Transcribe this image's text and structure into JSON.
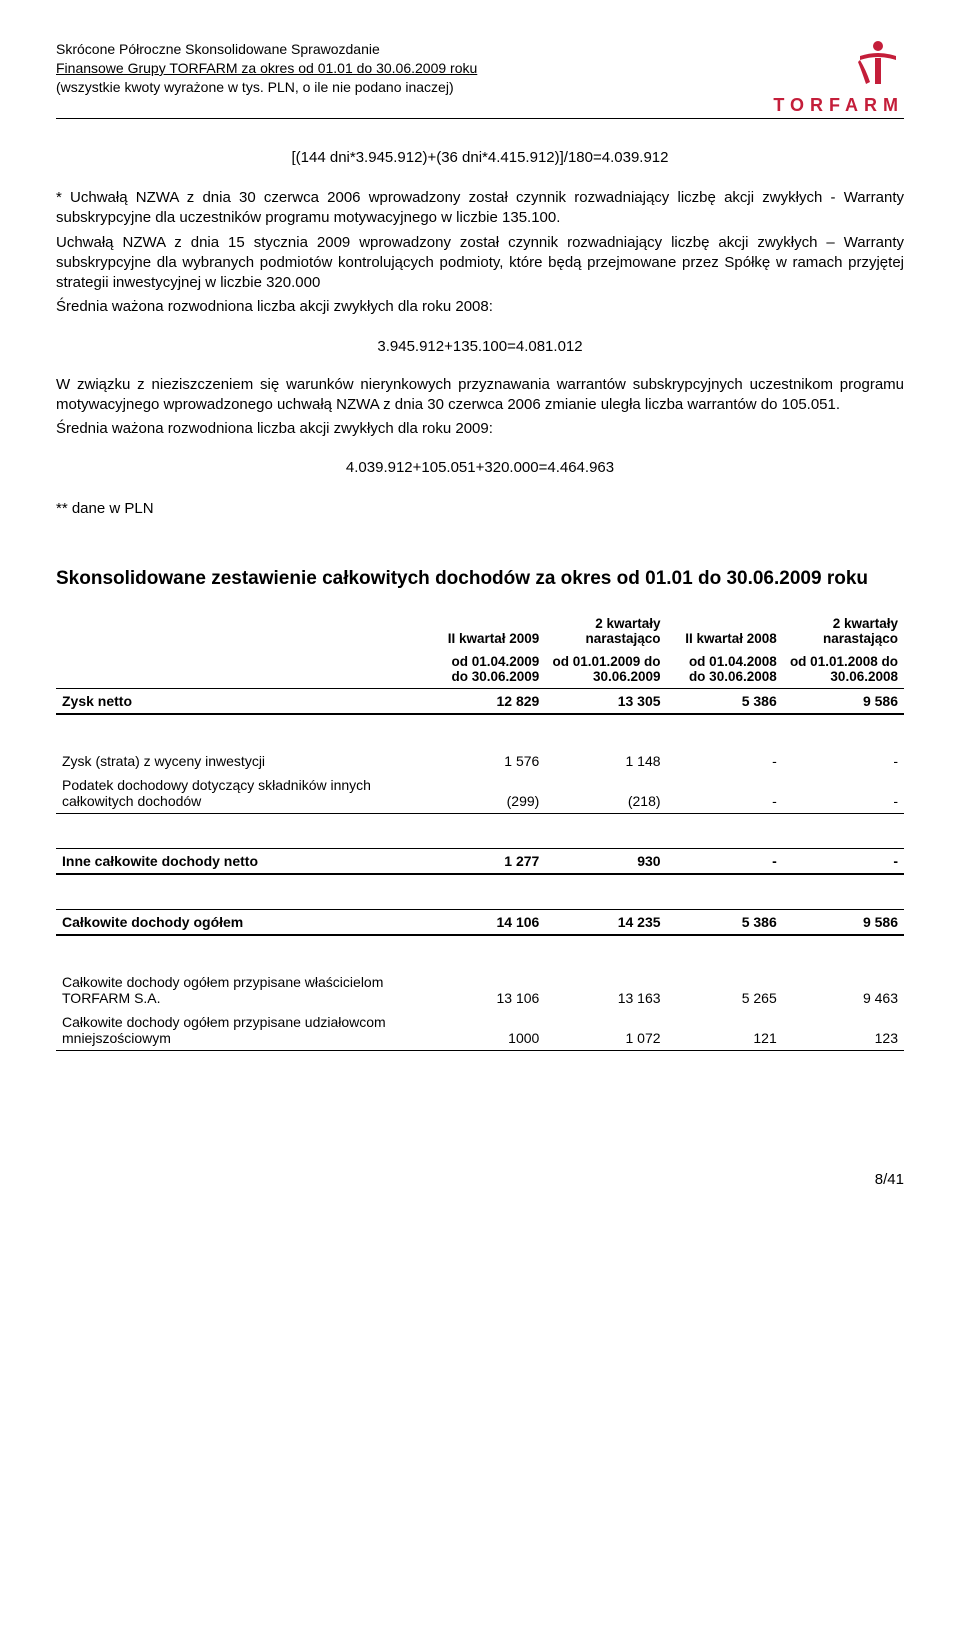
{
  "header": {
    "line1": "Skrócone Półroczne Skonsolidowane Sprawozdanie",
    "line2": "Finansowe Grupy TORFARM za okres od 01.01 do 30.06.2009 roku",
    "line3": "(wszystkie kwoty wyrażone w tys. PLN, o ile nie podano inaczej)",
    "logo_text": "TORFARM",
    "logo_color": "#c41e3a"
  },
  "formula1": "[(144 dni*3.945.912)+(36 dni*4.415.912)]/180=4.039.912",
  "para1": "* Uchwałą NZWA z dnia 30 czerwca 2006 wprowadzony został czynnik rozwadniający liczbę akcji zwykłych - Warranty subskrypcyjne dla uczestników programu motywacyjnego w liczbie 135.100.",
  "para2": "Uchwałą NZWA z dnia 15 stycznia 2009 wprowadzony został czynnik rozwadniający liczbę akcji zwykłych – Warranty subskrypcyjne dla wybranych podmiotów kontrolujących podmioty, które będą przejmowane przez Spółkę w ramach przyjętej strategii inwestycyjnej w liczbie 320.000",
  "para3": "Średnia ważona rozwodniona liczba akcji zwykłych dla roku 2008:",
  "formula2": "3.945.912+135.100=4.081.012",
  "para4": "W związku z nieziszczeniem się warunków nierynkowych przyznawania warrantów subskrypcyjnych uczestnikom programu motywacyjnego wprowadzonego uchwałą NZWA z dnia 30 czerwca 2006 zmianie uległa liczba warrantów do 105.051.",
  "para5": "Średnia ważona rozwodniona liczba akcji zwykłych dla roku 2009:",
  "formula3": "4.039.912+105.051+320.000=4.464.963",
  "note": "** dane w PLN",
  "section_title": "Skonsolidowane zestawienie całkowitych dochodów za okres od 01.01 do 30.06.2009 roku",
  "table": {
    "col_headers": {
      "c1a": "II kwartał 2009",
      "c1b": "od 01.04.2009 do 30.06.2009",
      "c2a": "2 kwartały narastająco",
      "c2b": "od 01.01.2009 do 30.06.2009",
      "c3a": "II kwartał 2008",
      "c3b": "od 01.04.2008 do 30.06.2008",
      "c4a": "2 kwartały narastająco",
      "c4b": "od 01.01.2008 do 30.06.2008"
    },
    "rows": [
      {
        "label": "Zysk netto",
        "v": [
          "12 829",
          "13 305",
          "5 386",
          "9 586"
        ],
        "style": "bold dbl"
      },
      {
        "label": "Zysk (strata) z wyceny inwestycji",
        "v": [
          "1 576",
          "1 148",
          "-",
          "-"
        ],
        "style": ""
      },
      {
        "label": "Podatek dochodowy dotyczący składników innych całkowitych dochodów",
        "v": [
          "(299)",
          "(218)",
          "-",
          "-"
        ],
        "style": "bot"
      },
      {
        "label": "Inne całkowite dochody netto",
        "v": [
          "1 277",
          "930",
          "-",
          "-"
        ],
        "style": "bold dbl gap"
      },
      {
        "label": "Całkowite dochody ogółem",
        "v": [
          "14 106",
          "14 235",
          "5 386",
          "9 586"
        ],
        "style": "bold dbl gap"
      },
      {
        "label": "Całkowite dochody ogółem przypisane właścicielom TORFARM S.A.",
        "v": [
          "13 106",
          "13 163",
          "5 265",
          "9 463"
        ],
        "style": "gap"
      },
      {
        "label": "Całkowite dochody ogółem przypisane udziałowcom mniejszościowym",
        "v": [
          "1000",
          "1 072",
          "121",
          "123"
        ],
        "style": "bot"
      }
    ]
  },
  "footer": "8/41"
}
